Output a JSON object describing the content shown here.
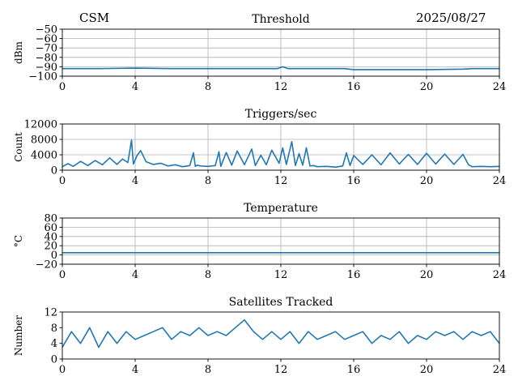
{
  "header": {
    "left": "CSM",
    "right": "2025/08/27"
  },
  "colors": {
    "line": "#1f77b4",
    "grid": "#b0b0b0",
    "axis": "#000000"
  },
  "chart_data": [
    {
      "type": "line",
      "title": "Threshold",
      "ylabel": "dBm",
      "xlim": [
        0,
        24
      ],
      "ylim": [
        -100,
        -50
      ],
      "xticks": [
        0,
        4,
        8,
        12,
        16,
        20,
        24
      ],
      "yticks": [
        -100,
        -90,
        -80,
        -70,
        -60,
        -50
      ],
      "grid": true,
      "series": [
        {
          "x": [
            0,
            2,
            4,
            6,
            8,
            10,
            11.8,
            12.1,
            12.4,
            13,
            14,
            15.5,
            16,
            18,
            20,
            22,
            22.5,
            24
          ],
          "y": [
            -92,
            -92,
            -91.5,
            -92,
            -92,
            -92,
            -92,
            -90,
            -92,
            -92,
            -92,
            -92,
            -93,
            -93,
            -93,
            -92.5,
            -92,
            -92
          ]
        }
      ]
    },
    {
      "type": "line",
      "title": "Triggers/sec",
      "ylabel": "Count",
      "xlim": [
        0,
        24
      ],
      "ylim": [
        0,
        12000
      ],
      "xticks": [
        0,
        4,
        8,
        12,
        16,
        20,
        24
      ],
      "yticks": [
        0,
        4000,
        8000,
        12000
      ],
      "grid": true,
      "series": [
        {
          "x": [
            0,
            0.3,
            0.6,
            1,
            1.4,
            1.8,
            2.2,
            2.6,
            3,
            3.3,
            3.6,
            3.8,
            3.9,
            4.1,
            4.3,
            4.6,
            5,
            5.4,
            5.8,
            6.2,
            6.6,
            7,
            7.2,
            7.3,
            7.4,
            7.6,
            8,
            8.4,
            8.6,
            8.7,
            9,
            9.3,
            9.6,
            10,
            10.4,
            10.6,
            10.9,
            11.2,
            11.5,
            11.9,
            12.1,
            12.3,
            12.6,
            12.8,
            13,
            13.2,
            13.4,
            13.6,
            13.8,
            14,
            14.5,
            15,
            15.4,
            15.6,
            15.8,
            16,
            16.5,
            17,
            17.5,
            18,
            18.5,
            19,
            19.5,
            20,
            20.5,
            21,
            21.5,
            22,
            22.3,
            22.5,
            23,
            23.5,
            24
          ],
          "y": [
            900,
            1700,
            1000,
            2300,
            1200,
            2500,
            1400,
            3200,
            1500,
            2900,
            2000,
            7800,
            1600,
            3800,
            5100,
            2200,
            1500,
            1800,
            1100,
            1400,
            900,
            1200,
            4500,
            1000,
            1300,
            1100,
            1000,
            1200,
            4800,
            1000,
            4600,
            1300,
            5000,
            1400,
            5500,
            1200,
            3900,
            1400,
            5200,
            1800,
            5800,
            1500,
            7400,
            1200,
            4300,
            1300,
            5800,
            1100,
            1200,
            900,
            1000,
            800,
            1100,
            4500,
            1200,
            3800,
            1500,
            4000,
            1400,
            4500,
            1600,
            4100,
            1500,
            4400,
            1600,
            4200,
            1500,
            4100,
            1400,
            900,
            1000,
            900,
            1000
          ]
        }
      ]
    },
    {
      "type": "line",
      "title": "Temperature",
      "ylabel": "°C",
      "xlim": [
        0,
        24
      ],
      "ylim": [
        -20,
        80
      ],
      "xticks": [
        0,
        4,
        8,
        12,
        16,
        20,
        24
      ],
      "yticks": [
        -20,
        0,
        20,
        40,
        60,
        80
      ],
      "grid": true,
      "series": [
        {
          "x": [
            0,
            24
          ],
          "y": [
            5,
            5
          ]
        }
      ]
    },
    {
      "type": "line",
      "title": "Satellites Tracked",
      "ylabel": "Number",
      "xlim": [
        0,
        24
      ],
      "ylim": [
        0,
        12
      ],
      "xticks": [
        0,
        4,
        8,
        12,
        16,
        20,
        24
      ],
      "yticks": [
        0,
        4,
        8,
        12
      ],
      "grid": false,
      "series": [
        {
          "x": [
            0,
            0.5,
            1,
            1.5,
            2,
            2.5,
            3,
            3.5,
            4,
            4.5,
            5,
            5.5,
            6,
            6.5,
            7,
            7.5,
            8,
            8.5,
            9,
            9.5,
            10,
            10.5,
            11,
            11.5,
            12,
            12.5,
            13,
            13.5,
            14,
            14.5,
            15,
            15.5,
            16,
            16.5,
            17,
            17.5,
            18,
            18.5,
            19,
            19.5,
            20,
            20.5,
            21,
            21.5,
            22,
            22.5,
            23,
            23.5,
            24
          ],
          "y": [
            3,
            7,
            4,
            8,
            3,
            7,
            4,
            7,
            5,
            6,
            7,
            8,
            5,
            7,
            6,
            8,
            6,
            7,
            6,
            8,
            10,
            7,
            5,
            7,
            5,
            7,
            4,
            7,
            5,
            6,
            7,
            5,
            6,
            7,
            4,
            6,
            5,
            7,
            4,
            6,
            5,
            7,
            6,
            7,
            5,
            7,
            6,
            7,
            4
          ]
        }
      ]
    }
  ]
}
